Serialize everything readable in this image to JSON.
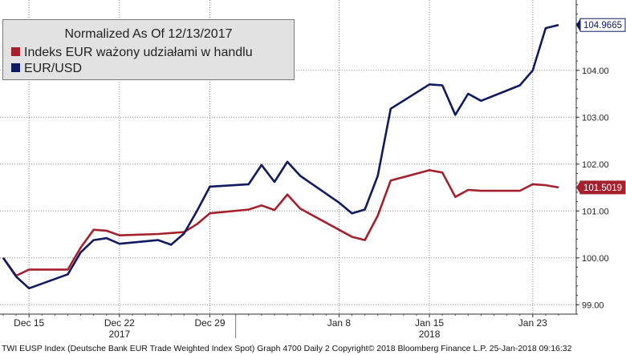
{
  "chart_data": {
    "type": "line",
    "title": "Normalized As Of 12/13/2017",
    "x": [
      "2017-12-13",
      "2017-12-14",
      "2017-12-15",
      "2017-12-18",
      "2017-12-19",
      "2017-12-20",
      "2017-12-21",
      "2017-12-22",
      "2017-12-25",
      "2017-12-26",
      "2017-12-27",
      "2017-12-28",
      "2017-12-29",
      "2018-01-01",
      "2018-01-02",
      "2018-01-03",
      "2018-01-04",
      "2018-01-05",
      "2018-01-08",
      "2018-01-09",
      "2018-01-10",
      "2018-01-11",
      "2018-01-12",
      "2018-01-15",
      "2018-01-16",
      "2018-01-17",
      "2018-01-18",
      "2018-01-19",
      "2018-01-22",
      "2018-01-23",
      "2018-01-24",
      "2018-01-25"
    ],
    "series": [
      {
        "name": "Indeks EUR ważony udziałami w handlu",
        "color": "#a3202c",
        "values": [
          100.0,
          99.62,
          99.75,
          99.75,
          100.22,
          100.6,
          100.58,
          100.48,
          100.51,
          100.53,
          100.55,
          100.72,
          100.95,
          101.03,
          101.12,
          101.02,
          101.35,
          101.05,
          100.6,
          100.45,
          100.38,
          100.9,
          101.65,
          101.87,
          101.82,
          101.3,
          101.45,
          101.43,
          101.43,
          101.57,
          101.55,
          101.5019
        ]
      },
      {
        "name": "EUR/USD",
        "color": "#101a5e",
        "values": [
          100.0,
          99.6,
          99.35,
          99.65,
          100.12,
          100.38,
          100.42,
          100.3,
          100.38,
          100.28,
          100.52,
          101.0,
          101.52,
          101.57,
          101.98,
          101.62,
          102.05,
          101.75,
          101.18,
          100.95,
          101.03,
          101.75,
          103.18,
          103.7,
          103.68,
          103.05,
          103.5,
          103.35,
          103.68,
          104.0,
          104.9,
          104.9665
        ]
      }
    ],
    "last_value_labels": [
      "104.9665",
      "101.5019"
    ],
    "ylim": [
      98.8,
      105.5
    ],
    "y_ticks": [
      "99.00",
      "100.00",
      "101.00",
      "102.00",
      "103.00",
      "104.00"
    ],
    "x_ticks": [
      {
        "date": "2017-12-15",
        "label": "Dec 15"
      },
      {
        "date": "2017-12-22",
        "label": "Dec 22"
      },
      {
        "date": "2017-12-29",
        "label": "Dec 29"
      },
      {
        "date": "2018-01-08",
        "label": "Jan 8"
      },
      {
        "date": "2018-01-15",
        "label": "Jan 15"
      },
      {
        "date": "2018-01-23",
        "label": "Jan 23"
      }
    ],
    "year_labels": [
      {
        "date": "2017-12-22",
        "label": "2017"
      },
      {
        "date": "2018-01-15",
        "label": "2018"
      }
    ],
    "grid": true,
    "y_axis_side": "right",
    "legend_position": "top-left"
  },
  "footer": "TWI EUSP Index (Deutsche Bank EUR Trade Weighted Index Spot) Graph 4700  Daily 2  Copyright© 2018 Bloomberg Finance L.P.  25-Jan-2018 09:16:32"
}
